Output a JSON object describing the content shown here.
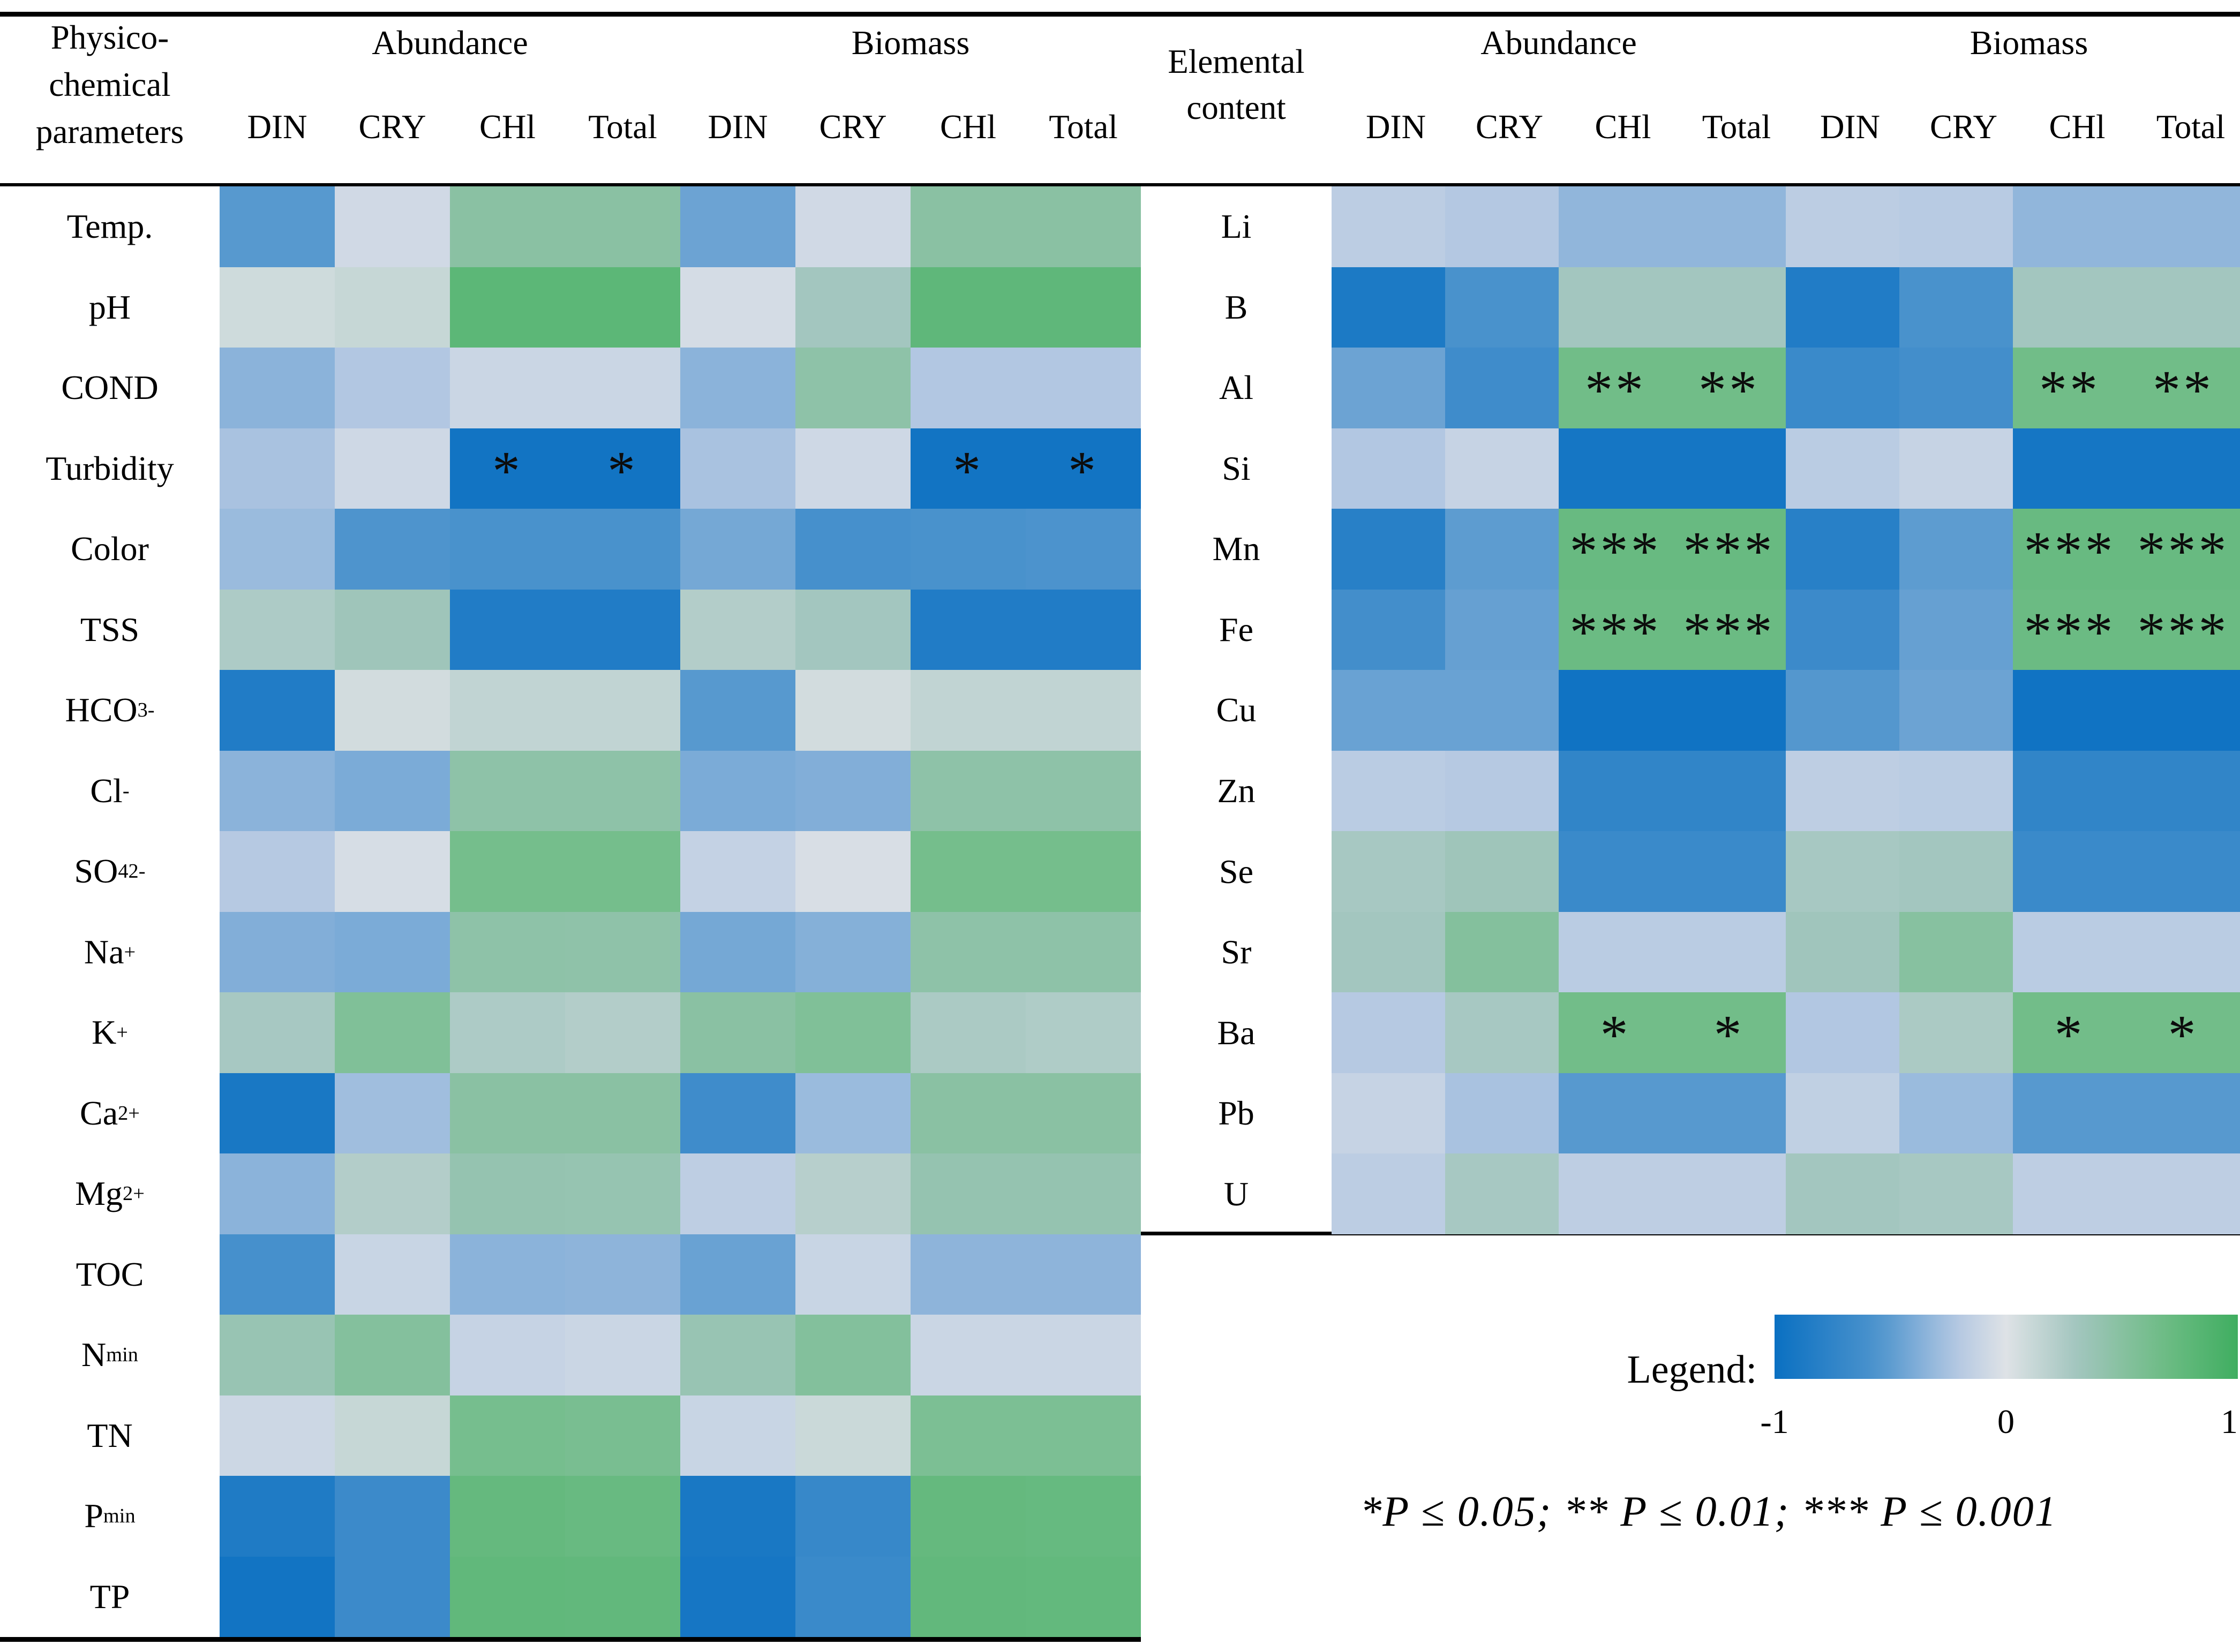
{
  "page": {
    "background": "#ffffff",
    "line_color": "#000000"
  },
  "legend": {
    "label": "Legend:",
    "ticks": [
      "-1",
      "0",
      "1"
    ]
  },
  "significance_note": "*P ≤ 0.05; ** P ≤ 0.01; *** P ≤ 0.001",
  "colormap": {
    "negative_end": "#0a70c2",
    "neutral": "#dee2e6",
    "positive_end": "#3fae60",
    "blue_stops": [
      [
        0,
        "#dee2e6"
      ],
      [
        0.22,
        "#b2c7e2"
      ],
      [
        0.55,
        "#4e94cd"
      ],
      [
        1,
        "#0a70c2"
      ]
    ],
    "green_stops": [
      [
        0,
        "#dee2e6"
      ],
      [
        0.3,
        "#a3c6bf"
      ],
      [
        0.65,
        "#72bd89"
      ],
      [
        1,
        "#3fae60"
      ]
    ]
  },
  "chart_data": [
    {
      "type": "heatmap",
      "panel": "physico-chemical",
      "row_header_lines": [
        "Physico-",
        "chemical",
        "parameters"
      ],
      "col_groups": [
        "Abundance",
        "Biomass"
      ],
      "columns": [
        "DIN",
        "CRY",
        "CHl",
        "Total",
        "DIN",
        "CRY",
        "CHl",
        "Total"
      ],
      "value_range": [
        -1,
        1
      ],
      "rows": [
        {
          "label": [
            {
              "t": "Temp."
            }
          ],
          "values": [
            -0.52,
            -0.07,
            0.48,
            0.48,
            -0.45,
            -0.07,
            0.48,
            0.48
          ]
        },
        {
          "label": [
            {
              "t": "pH"
            }
          ],
          "values": [
            0.08,
            0.12,
            0.8,
            0.8,
            -0.05,
            0.3,
            0.78,
            0.78
          ]
        },
        {
          "label": [
            {
              "t": "COND"
            }
          ],
          "values": [
            -0.35,
            -0.22,
            -0.1,
            -0.1,
            -0.35,
            0.45,
            -0.22,
            -0.22
          ]
        },
        {
          "label": [
            {
              "t": "Turbidity"
            }
          ],
          "values": [
            -0.25,
            -0.08,
            -0.95,
            -0.95,
            -0.25,
            -0.08,
            -0.95,
            -0.95
          ],
          "stars": [
            "",
            "",
            "*",
            "*",
            "",
            "",
            "*",
            "*"
          ]
        },
        {
          "label": [
            {
              "t": "Color"
            }
          ],
          "values": [
            -0.3,
            -0.55,
            -0.58,
            -0.58,
            -0.42,
            -0.6,
            -0.58,
            -0.56
          ]
        },
        {
          "label": [
            {
              "t": "TSS"
            }
          ],
          "values": [
            0.25,
            0.33,
            -0.85,
            -0.85,
            0.22,
            0.3,
            -0.85,
            -0.85
          ]
        },
        {
          "label": [
            {
              "t": "HCO"
            },
            {
              "sub": "3"
            },
            {
              "sup": "-"
            }
          ],
          "values": [
            -0.85,
            0.06,
            0.15,
            0.15,
            -0.52,
            0.06,
            0.15,
            0.15
          ]
        },
        {
          "label": [
            {
              "t": "Cl"
            },
            {
              "sup": "-"
            }
          ],
          "values": [
            -0.35,
            -0.4,
            0.45,
            0.45,
            -0.4,
            -0.38,
            0.45,
            0.45
          ]
        },
        {
          "label": [
            {
              "t": "SO"
            },
            {
              "sub": "4"
            },
            {
              "sup": "2-"
            }
          ],
          "values": [
            -0.2,
            -0.04,
            0.63,
            0.63,
            -0.13,
            -0.03,
            0.63,
            0.63
          ]
        },
        {
          "label": [
            {
              "t": "Na"
            },
            {
              "sup": "+"
            }
          ],
          "values": [
            -0.38,
            -0.4,
            0.45,
            0.44,
            -0.42,
            -0.37,
            0.45,
            0.45
          ]
        },
        {
          "label": [
            {
              "t": "K"
            },
            {
              "sup": "+"
            }
          ],
          "values": [
            0.28,
            0.55,
            0.25,
            0.22,
            0.48,
            0.55,
            0.26,
            0.24
          ]
        },
        {
          "label": [
            {
              "t": "Ca"
            },
            {
              "sup": "2+"
            }
          ],
          "values": [
            -0.9,
            -0.28,
            0.48,
            0.48,
            -0.65,
            -0.3,
            0.48,
            0.48
          ]
        },
        {
          "label": [
            {
              "t": "Mg"
            },
            {
              "sup": "2+"
            }
          ],
          "values": [
            -0.35,
            0.22,
            0.4,
            0.39,
            -0.16,
            0.2,
            0.4,
            0.4
          ]
        },
        {
          "label": [
            {
              "t": "TOC"
            }
          ],
          "values": [
            -0.6,
            -0.11,
            -0.35,
            -0.34,
            -0.46,
            -0.11,
            -0.34,
            -0.34
          ]
        },
        {
          "label": [
            {
              "t": "N"
            },
            {
              "sub": "min"
            }
          ],
          "values": [
            0.38,
            0.52,
            -0.12,
            -0.1,
            0.38,
            0.53,
            -0.1,
            -0.1
          ]
        },
        {
          "label": [
            {
              "t": "TN"
            }
          ],
          "values": [
            -0.09,
            0.12,
            0.62,
            0.6,
            -0.11,
            0.1,
            0.58,
            0.58
          ]
        },
        {
          "label": [
            {
              "t": "P"
            },
            {
              "sub": "min"
            }
          ],
          "values": [
            -0.86,
            -0.67,
            0.74,
            0.72,
            -0.9,
            -0.7,
            0.74,
            0.73
          ]
        },
        {
          "label": [
            {
              "t": "TP"
            }
          ],
          "values": [
            -0.95,
            -0.67,
            0.77,
            0.76,
            -0.92,
            -0.68,
            0.76,
            0.75
          ]
        }
      ]
    },
    {
      "type": "heatmap",
      "panel": "elemental-content",
      "row_header_lines": [
        "Elemental",
        "content"
      ],
      "col_groups": [
        "Abundance",
        "Biomass"
      ],
      "columns": [
        "DIN",
        "CRY",
        "CHl",
        "Total",
        "DIN",
        "CRY",
        "CHl",
        "Total"
      ],
      "value_range": [
        -1,
        1
      ],
      "rows": [
        {
          "label": [
            {
              "t": "Li"
            }
          ],
          "values": [
            -0.17,
            -0.21,
            -0.33,
            -0.33,
            -0.17,
            -0.19,
            -0.33,
            -0.33
          ]
        },
        {
          "label": [
            {
              "t": "B"
            }
          ],
          "values": [
            -0.88,
            -0.58,
            0.3,
            0.3,
            -0.85,
            -0.58,
            0.3,
            0.3
          ]
        },
        {
          "label": [
            {
              "t": "Al"
            }
          ],
          "values": [
            -0.45,
            -0.65,
            0.66,
            0.66,
            -0.68,
            -0.62,
            0.66,
            0.66
          ],
          "stars": [
            "",
            "",
            "**",
            "**",
            "",
            "",
            "**",
            "**"
          ]
        },
        {
          "label": [
            {
              "t": "Si"
            }
          ],
          "values": [
            -0.22,
            -0.12,
            -0.93,
            -0.93,
            -0.18,
            -0.12,
            -0.93,
            -0.93
          ]
        },
        {
          "label": [
            {
              "t": "Mn"
            }
          ],
          "values": [
            -0.8,
            -0.5,
            0.72,
            0.72,
            -0.8,
            -0.5,
            0.72,
            0.72
          ],
          "stars": [
            "",
            "",
            "***",
            "***",
            "",
            "",
            "***",
            "***"
          ]
        },
        {
          "label": [
            {
              "t": "Fe"
            }
          ],
          "values": [
            -0.62,
            -0.47,
            0.7,
            0.7,
            -0.67,
            -0.47,
            0.7,
            0.7
          ],
          "stars": [
            "",
            "",
            "***",
            "***",
            "",
            "",
            "***",
            "***"
          ]
        },
        {
          "label": [
            {
              "t": "Cu"
            }
          ],
          "values": [
            -0.46,
            -0.46,
            -0.96,
            -0.96,
            -0.53,
            -0.45,
            -0.96,
            -0.96
          ]
        },
        {
          "label": [
            {
              "t": "Zn"
            }
          ],
          "values": [
            -0.18,
            -0.2,
            -0.74,
            -0.74,
            -0.16,
            -0.18,
            -0.74,
            -0.74
          ]
        },
        {
          "label": [
            {
              "t": "Se"
            }
          ],
          "values": [
            0.28,
            0.33,
            -0.68,
            -0.68,
            0.28,
            0.3,
            -0.68,
            -0.68
          ]
        },
        {
          "label": [
            {
              "t": "Sr"
            }
          ],
          "values": [
            0.3,
            0.52,
            -0.18,
            -0.18,
            0.32,
            0.5,
            -0.18,
            -0.18
          ]
        },
        {
          "label": [
            {
              "t": "Ba"
            }
          ],
          "values": [
            -0.2,
            0.28,
            0.65,
            0.65,
            -0.22,
            0.26,
            0.65,
            0.65
          ],
          "stars": [
            "",
            "",
            "*",
            "*",
            "",
            "",
            "*",
            "*"
          ]
        },
        {
          "label": [
            {
              "t": "Pb"
            }
          ],
          "values": [
            -0.12,
            -0.25,
            -0.52,
            -0.52,
            -0.15,
            -0.3,
            -0.52,
            -0.52
          ]
        },
        {
          "label": [
            {
              "t": "U"
            }
          ],
          "values": [
            -0.17,
            0.28,
            -0.16,
            -0.16,
            0.3,
            0.28,
            -0.16,
            -0.16
          ]
        }
      ]
    }
  ]
}
